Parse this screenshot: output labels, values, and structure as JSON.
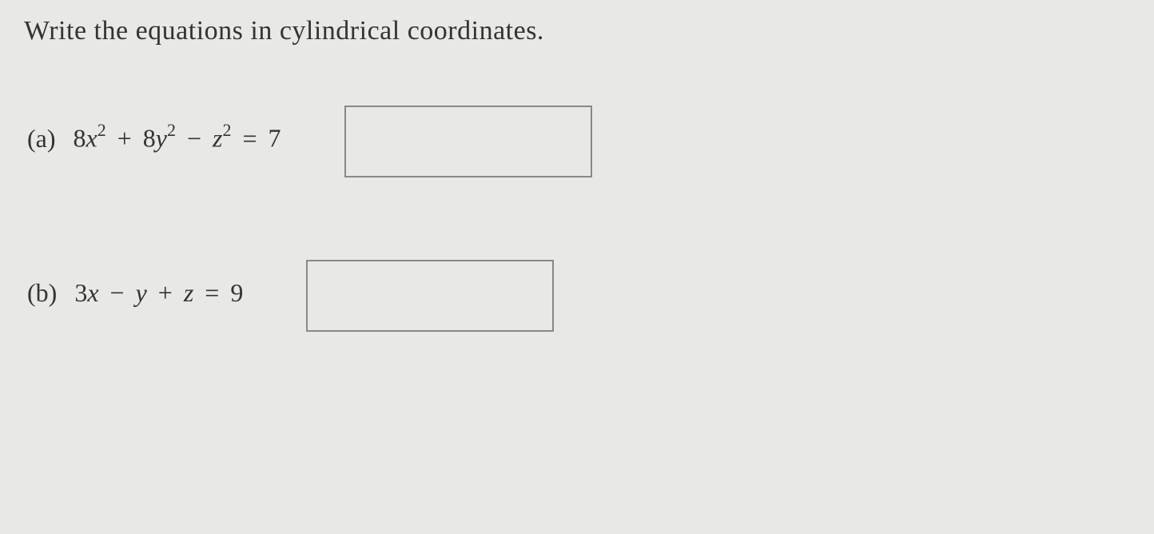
{
  "prompt": "Write the equations in cylindrical coordinates.",
  "problems": {
    "a": {
      "label": "(a)",
      "coef1": "8",
      "var1": "x",
      "exp1": "2",
      "op1": "+",
      "coef2": "8",
      "var2": "y",
      "exp2": "2",
      "op2": "−",
      "var3": "z",
      "exp3": "2",
      "op3": "=",
      "rhs": "7"
    },
    "b": {
      "label": "(b)",
      "coef1": "3",
      "var1": "x",
      "op1": "−",
      "var2": "y",
      "op2": "+",
      "var3": "z",
      "op3": "=",
      "rhs": "9"
    }
  },
  "styling": {
    "background_color": "#e8e8e6",
    "text_color": "#333333",
    "border_color": "#888888",
    "prompt_fontsize": 34,
    "equation_fontsize": 32,
    "superscript_fontsize": 22,
    "answer_box_width": 310,
    "answer_box_height": 90,
    "font_family": "Georgia, 'Times New Roman', serif"
  }
}
